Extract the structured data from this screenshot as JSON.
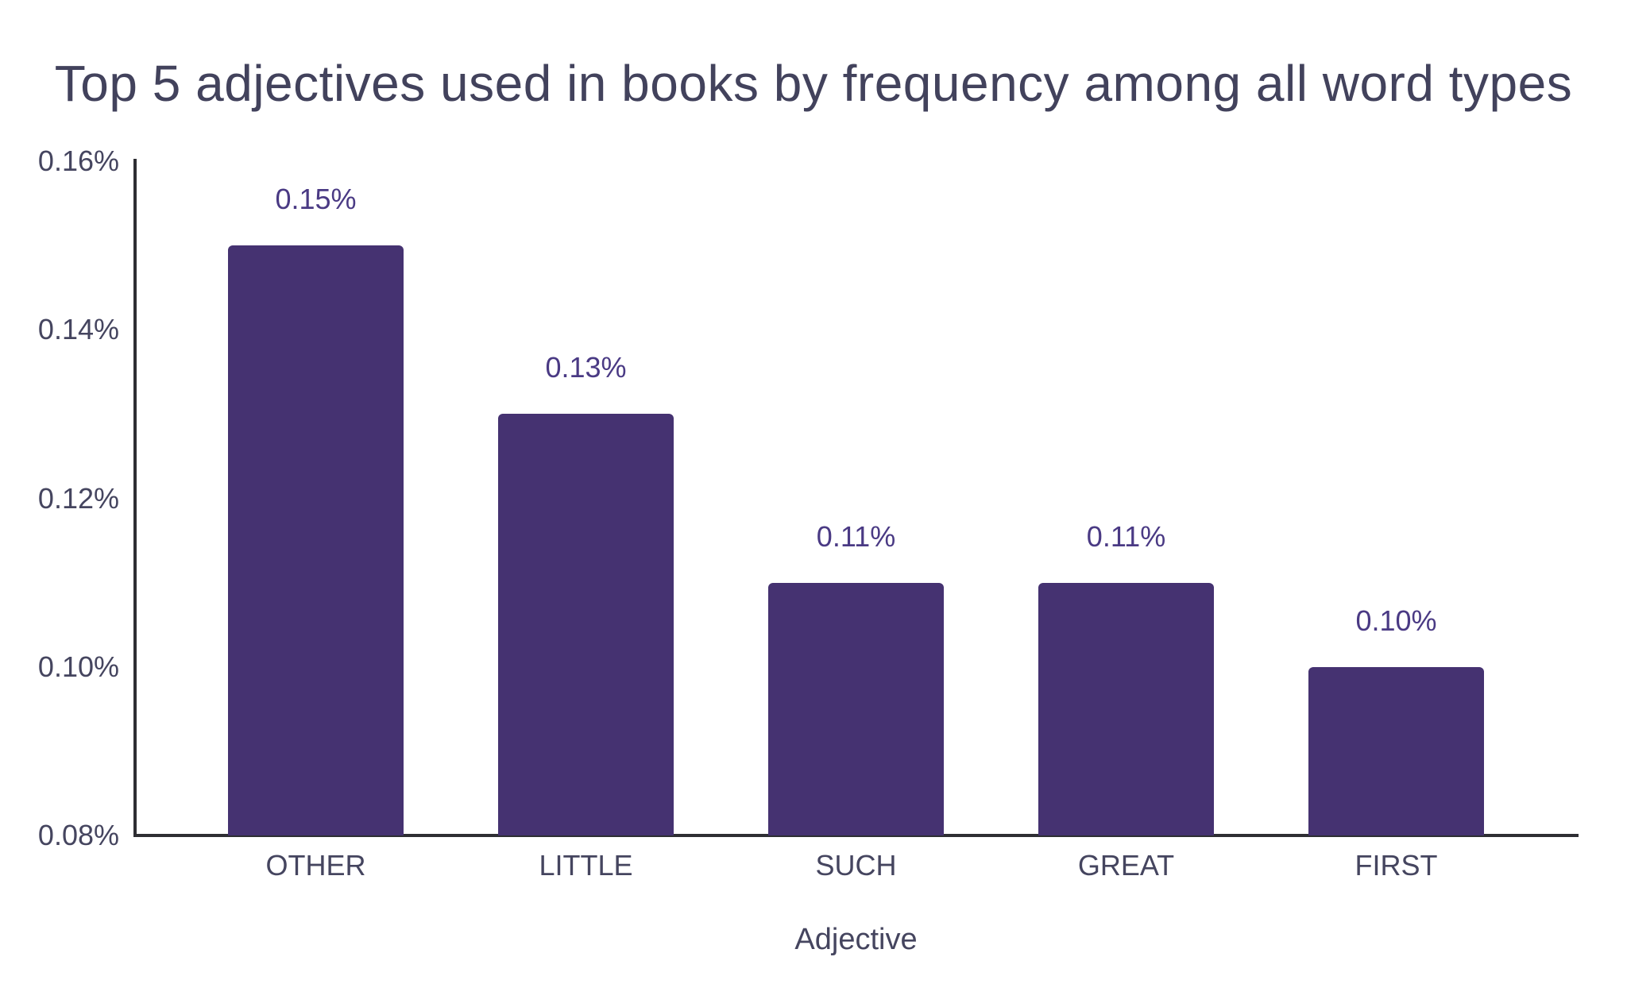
{
  "title": "Top 5 adjectives used in books by frequency among all word types",
  "chart_data": {
    "type": "bar",
    "title": "Top 5 adjectives used in books by frequency among all word types",
    "xlabel": "Adjective",
    "ylabel": "",
    "categories": [
      "OTHER",
      "LITTLE",
      "SUCH",
      "GREAT",
      "FIRST"
    ],
    "values": [
      0.15,
      0.13,
      0.11,
      0.11,
      0.1
    ],
    "bar_labels": [
      "0.15%",
      "0.13%",
      "0.11%",
      "0.11%",
      "0.10%"
    ],
    "ylim": [
      0.08,
      0.16
    ],
    "yticks": [
      0.16,
      0.14,
      0.12,
      0.1,
      0.08
    ],
    "ytick_labels": [
      "0.16%",
      "0.14%",
      "0.12%",
      "0.10%",
      "0.08%"
    ],
    "grid": false,
    "legend": false,
    "colors": {
      "bar": "#453271",
      "bar_label": "#4a3a84",
      "tick_label": "#45455f",
      "title": "#42425c",
      "axis_line": "#2e2e33",
      "background": "#ffffff"
    }
  }
}
